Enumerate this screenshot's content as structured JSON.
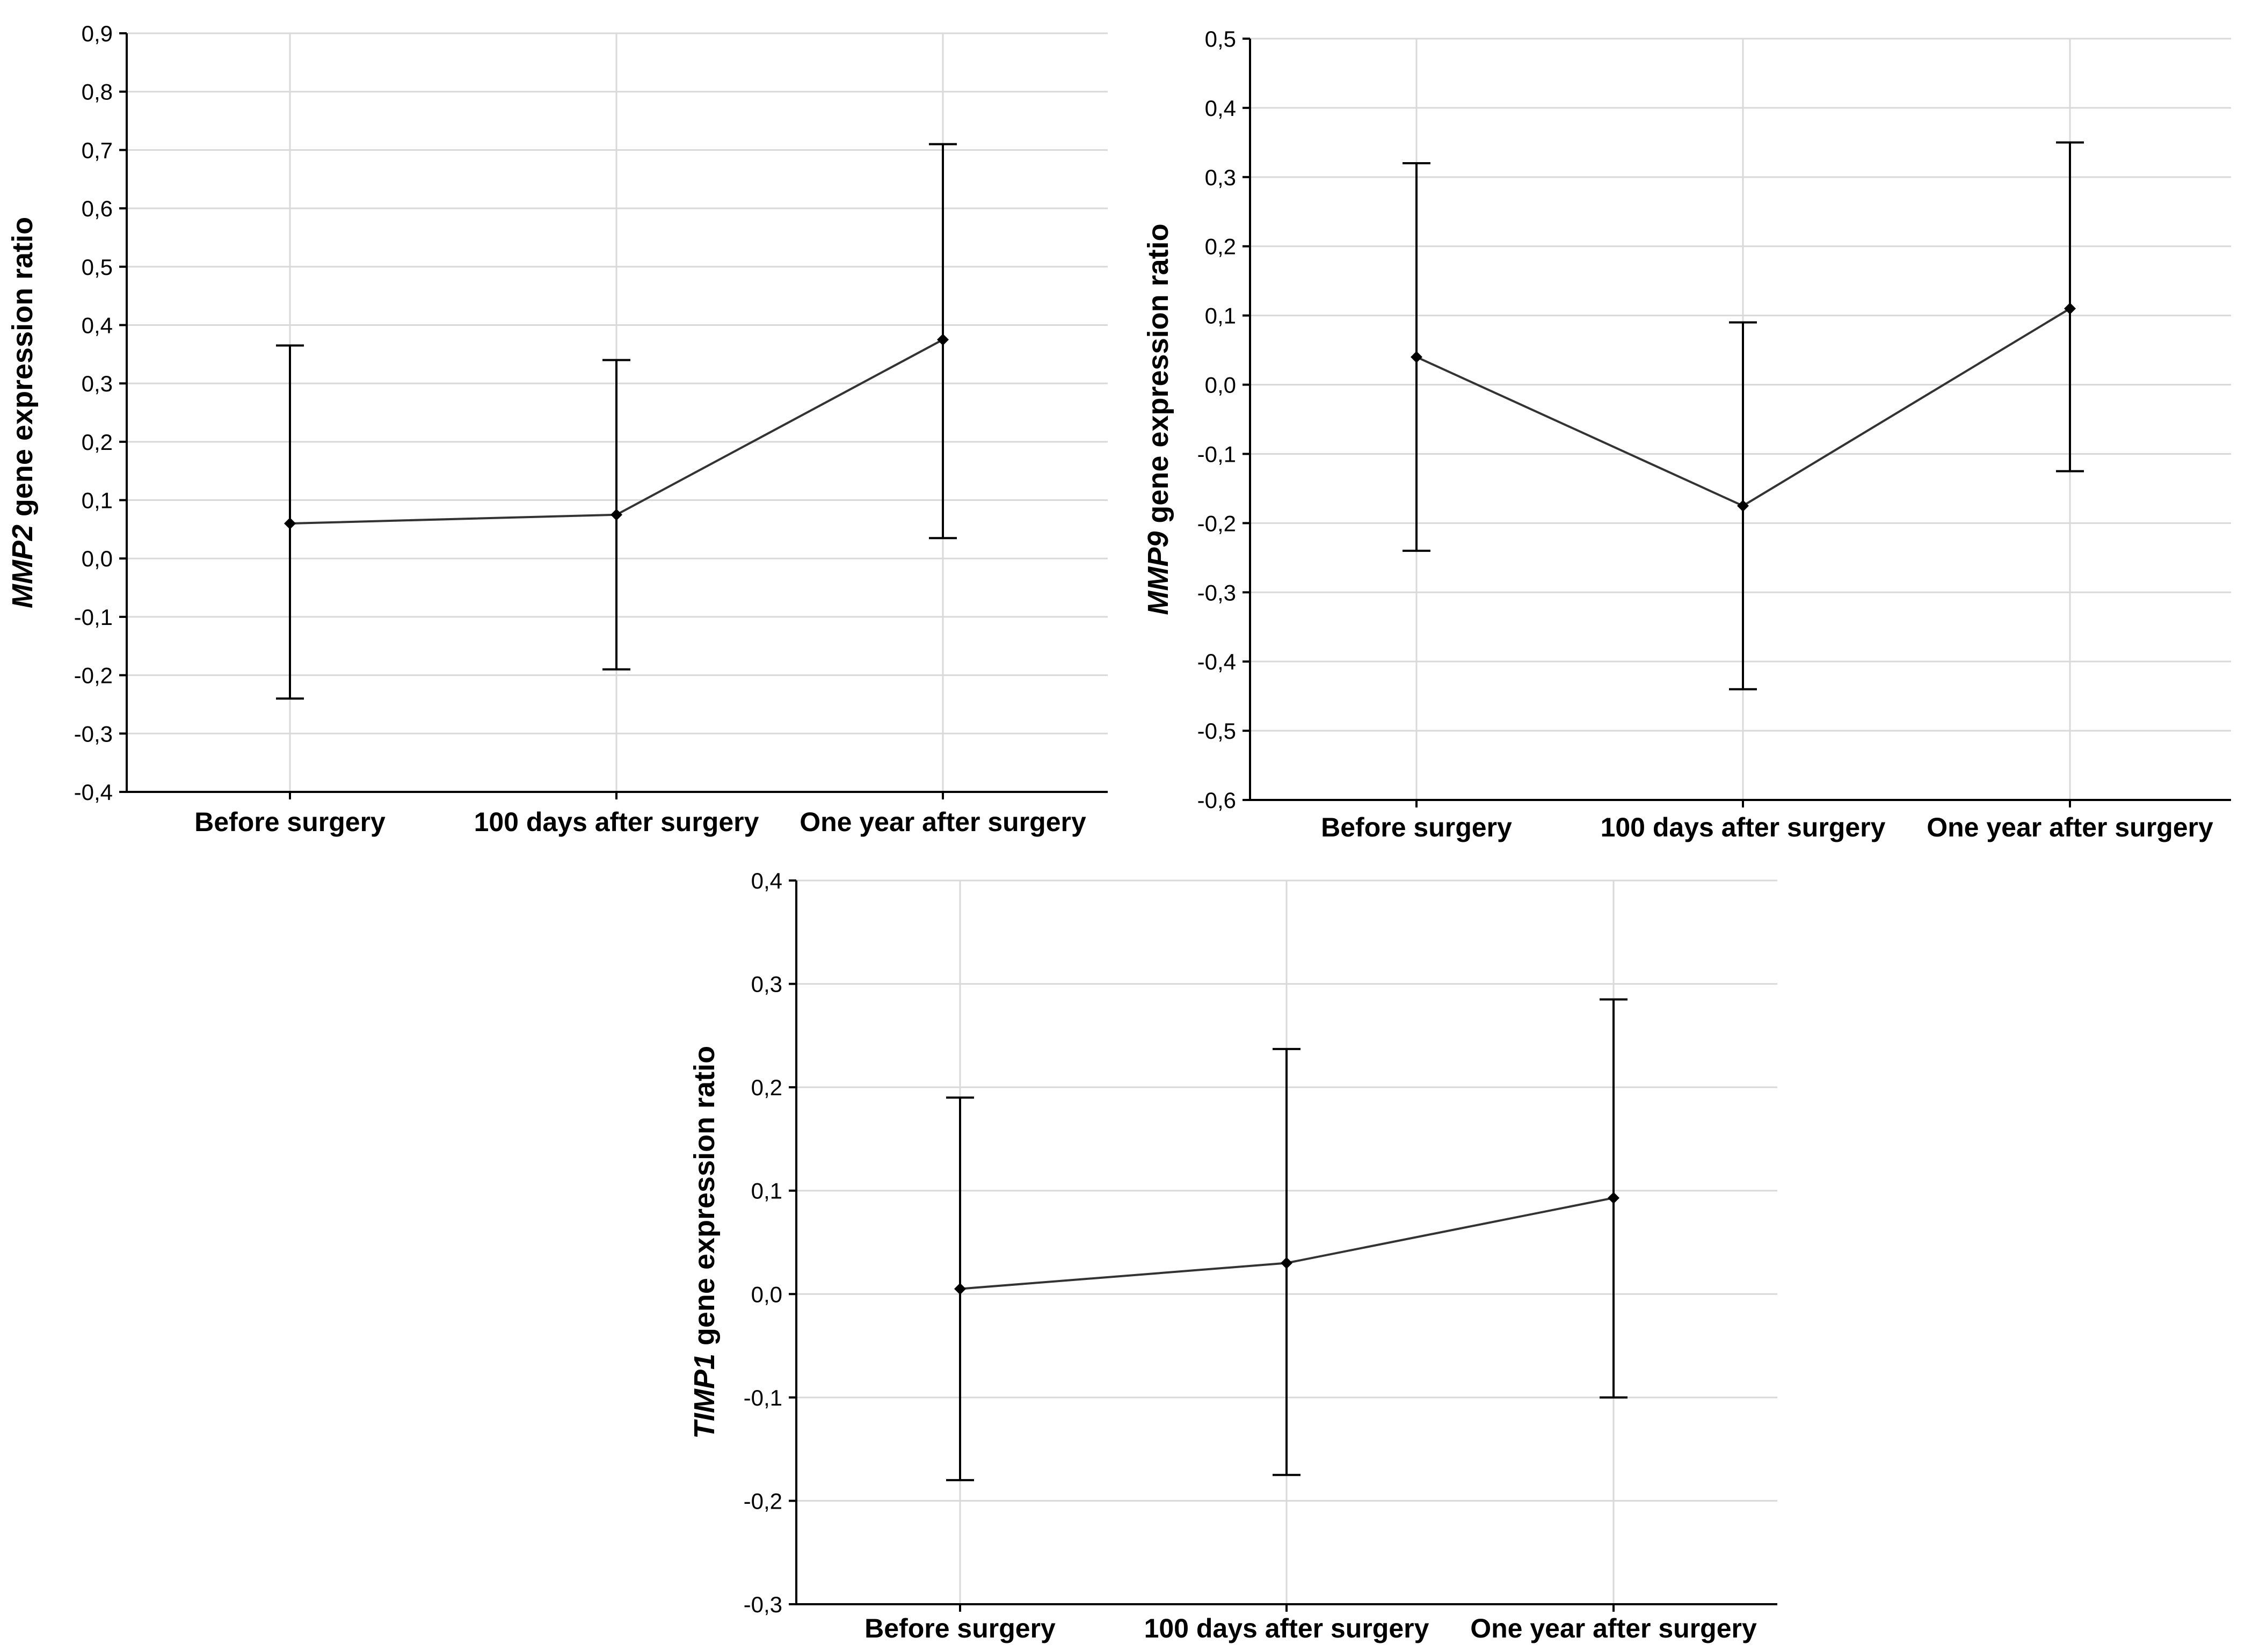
{
  "chart_data": [
    {
      "type": "line",
      "categories": [
        "Before surgery",
        "100 days after surgery",
        "One year after surgery"
      ],
      "values": [
        0.06,
        0.075,
        0.375
      ],
      "lower": [
        -0.24,
        -0.19,
        0.035
      ],
      "upper": [
        0.365,
        0.34,
        0.71
      ],
      "ylim": [
        -0.4,
        0.9
      ],
      "yticks": [
        -0.4,
        -0.3,
        -0.2,
        -0.1,
        0.0,
        0.1,
        0.2,
        0.3,
        0.4,
        0.5,
        0.6,
        0.7,
        0.8,
        0.9
      ],
      "ytick_labels": [
        "-0,4",
        "-0,3",
        "-0,2",
        "-0,1",
        "0,0",
        "0,1",
        "0,2",
        "0,3",
        "0,4",
        "0,5",
        "0,6",
        "0,7",
        "0,8",
        "0,9"
      ],
      "ylabel_gene": "MMP2",
      "ylabel_rest": " gene expression ratio",
      "xlabel": "",
      "grid": true
    },
    {
      "type": "line",
      "categories": [
        "Before surgery",
        "100 days after surgery",
        "One year after surgery"
      ],
      "values": [
        0.04,
        -0.175,
        0.11
      ],
      "lower": [
        -0.24,
        -0.44,
        -0.125
      ],
      "upper": [
        0.32,
        0.09,
        0.35
      ],
      "ylim": [
        -0.6,
        0.5
      ],
      "yticks": [
        -0.6,
        -0.5,
        -0.4,
        -0.3,
        -0.2,
        -0.1,
        0.0,
        0.1,
        0.2,
        0.3,
        0.4,
        0.5
      ],
      "ytick_labels": [
        "-0,6",
        "-0,5",
        "-0,4",
        "-0,3",
        "-0,2",
        "-0,1",
        "0,0",
        "0,1",
        "0,2",
        "0,3",
        "0,4",
        "0,5"
      ],
      "ylabel_gene": "MMP9",
      "ylabel_rest": " gene expression ratio",
      "xlabel": "",
      "grid": true
    },
    {
      "type": "line",
      "categories": [
        "Before surgery",
        "100 days after surgery",
        "One year after surgery"
      ],
      "values": [
        0.005,
        0.03,
        0.093
      ],
      "lower": [
        -0.18,
        -0.175,
        -0.1
      ],
      "upper": [
        0.19,
        0.237,
        0.285
      ],
      "ylim": [
        -0.3,
        0.4
      ],
      "yticks": [
        -0.3,
        -0.2,
        -0.1,
        0.0,
        0.1,
        0.2,
        0.3,
        0.4
      ],
      "ytick_labels": [
        "-0,3",
        "-0,2",
        "-0,1",
        "0,0",
        "0,1",
        "0,2",
        "0,3",
        "0,4"
      ],
      "ylabel_gene": "TIMP1",
      "ylabel_rest": " gene expression ratio",
      "xlabel": "",
      "grid": true
    }
  ]
}
